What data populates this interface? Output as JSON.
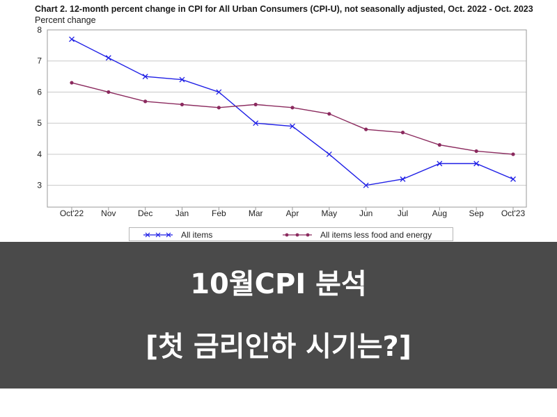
{
  "chart_data": {
    "type": "line",
    "title": "Chart 2. 12-month percent change in CPI for All Urban Consumers (CPI-U), not seasonally adjusted, Oct. 2022 - Oct. 2023",
    "ylabel": "Percent change",
    "xlabel": "",
    "categories": [
      "Oct'22",
      "Nov",
      "Dec",
      "Jan",
      "Feb",
      "Mar",
      "Apr",
      "May",
      "Jun",
      "Jul",
      "Aug",
      "Sep",
      "Oct'23"
    ],
    "ylim": [
      2.3,
      8
    ],
    "yticks": [
      3,
      4,
      5,
      6,
      7,
      8
    ],
    "grid": true,
    "legend": "bottom",
    "series": [
      {
        "name": "All items",
        "color": "#1f1fe6",
        "marker": "x",
        "values": [
          7.7,
          7.1,
          6.5,
          6.4,
          6.0,
          5.0,
          4.9,
          4.0,
          3.0,
          3.2,
          3.7,
          3.7,
          3.2
        ]
      },
      {
        "name": "All items less food and energy",
        "color": "#8b2a5e",
        "marker": "dot",
        "values": [
          6.3,
          6.0,
          5.7,
          5.6,
          5.5,
          5.6,
          5.5,
          5.3,
          4.8,
          4.7,
          4.3,
          4.1,
          4.0
        ]
      }
    ]
  },
  "banner": {
    "line1": "10월CPI 분석",
    "line2": "[첫 금리인하 시기는?]"
  }
}
